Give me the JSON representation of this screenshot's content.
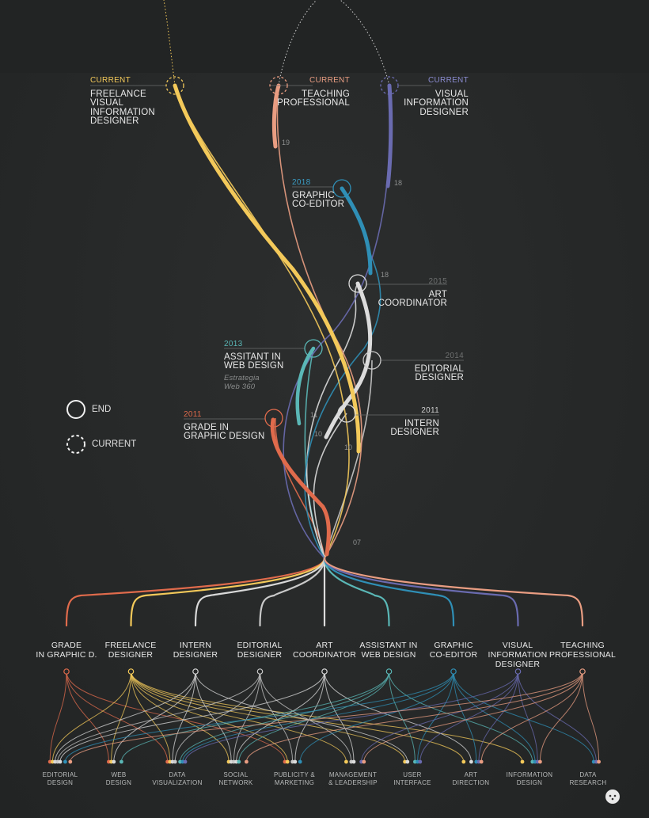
{
  "legend": {
    "end_label": "END",
    "current_label": "CURRENT"
  },
  "colors": {
    "grade": "#e06b4c",
    "freelance": "#f3c95a",
    "intern": "#d9d9d9",
    "editorial": "#c9c9c9",
    "art": "#dcdcdc",
    "web": "#5ab7b6",
    "graphic": "#2f8fb6",
    "visual": "#6a6bb0",
    "teaching": "#e99d82"
  },
  "timeline_labels": {
    "freelance": {
      "year": "CURRENT",
      "title": [
        "FREELANCE",
        "VISUAL",
        "INFORMATION",
        "DESIGNER"
      ]
    },
    "teaching": {
      "year": "CURRENT",
      "title": [
        "TEACHING",
        "PROFESSIONAL"
      ]
    },
    "visual": {
      "year": "CURRENT",
      "title": [
        "VISUAL",
        "INFORMATION",
        "DESIGNER"
      ]
    },
    "graphic": {
      "year": "2018",
      "title": [
        "GRAPHIC",
        "CO-EDITOR"
      ]
    },
    "art": {
      "year": "2015",
      "title": [
        "ART",
        "COORDINATOR"
      ]
    },
    "web": {
      "year": "2013",
      "title": [
        "ASSITANT IN",
        "WEB DESIGN"
      ],
      "note": [
        "Estrategia",
        "Web 360"
      ]
    },
    "editorial": {
      "year": "2014",
      "title": [
        "EDITORIAL",
        "DESIGNER"
      ]
    },
    "grade": {
      "year": "2011",
      "title": [
        "GRADE IN",
        "GRAPHIC DESIGN"
      ]
    },
    "intern": {
      "year": "2011",
      "title": [
        "INTERN",
        "DESIGNER"
      ]
    }
  },
  "year_marks": [
    "19",
    "18",
    "18",
    "11",
    "10",
    "10",
    "07"
  ],
  "roles": [
    {
      "key": "grade",
      "label": [
        "GRADE",
        "IN GRAPHIC D."
      ]
    },
    {
      "key": "freelance",
      "label": [
        "FREELANCE",
        "DESIGNER"
      ]
    },
    {
      "key": "intern",
      "label": [
        "INTERN",
        "DESIGNER"
      ]
    },
    {
      "key": "editorial",
      "label": [
        "EDITORIAL",
        "DESIGNER"
      ]
    },
    {
      "key": "art",
      "label": [
        "ART",
        "COORDINATOR"
      ]
    },
    {
      "key": "web",
      "label": [
        "ASSISTANT IN",
        "WEB DESIGN"
      ]
    },
    {
      "key": "graphic",
      "label": [
        "GRAPHIC",
        "CO-EDITOR"
      ]
    },
    {
      "key": "visual",
      "label": [
        "VISUAL",
        "INFORMATION",
        "DESIGNER"
      ]
    },
    {
      "key": "teaching",
      "label": [
        "TEACHING",
        "PROFESSIONAL"
      ]
    }
  ],
  "skills": [
    [
      "EDITORIAL",
      "DESIGN"
    ],
    [
      "WEB",
      "DESIGN"
    ],
    [
      "DATA",
      "VISUALIZATION"
    ],
    [
      "SOCIAL",
      "NETWORK"
    ],
    [
      "PUBLICITY &",
      "MARKETING"
    ],
    [
      "MANAGEMENT",
      "& LEADERSHIP"
    ],
    [
      "USER",
      "INTERFACE"
    ],
    [
      "ART",
      "DIRECTION"
    ],
    [
      "INFORMATION",
      "DESIGN"
    ],
    [
      "DATA",
      "RESEARCH"
    ]
  ]
}
